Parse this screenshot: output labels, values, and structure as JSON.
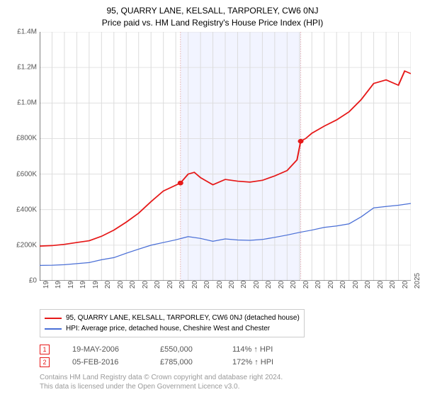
{
  "title": "95, QUARRY LANE, KELSALL, TARPORLEY, CW6 0NJ",
  "subtitle": "Price paid vs. HM Land Registry's House Price Index (HPI)",
  "chart": {
    "type": "line",
    "background_color": "#ffffff",
    "grid_color": "#dcdcdc",
    "shaded_region_fill": "#f2f4ff",
    "axis_color": "#000000",
    "label_fontsize": 10,
    "label_color": "#555555",
    "ylim": [
      0,
      1400000
    ],
    "ytick_step": 200000,
    "ytick_labels": [
      "£0",
      "£200K",
      "£400K",
      "£600K",
      "£800K",
      "£1.0M",
      "£1.2M",
      "£1.4M"
    ],
    "xlim": [
      1995,
      2025
    ],
    "xtick_step": 1,
    "xtick_labels": [
      "1995",
      "1996",
      "1997",
      "1998",
      "1999",
      "2000",
      "2001",
      "2002",
      "2003",
      "2004",
      "2005",
      "2006",
      "2007",
      "2008",
      "2009",
      "2010",
      "2011",
      "2012",
      "2013",
      "2014",
      "2015",
      "2016",
      "2017",
      "2018",
      "2019",
      "2020",
      "2021",
      "2022",
      "2023",
      "2024",
      "2025"
    ],
    "shaded_region": {
      "x_start": 2006.38,
      "x_end": 2016.1
    },
    "series": [
      {
        "name": "price_paid",
        "color": "#e61919",
        "line_width": 2,
        "x": [
          1995,
          1996,
          1997,
          1998,
          1999,
          2000,
          2001,
          2002,
          2003,
          2004,
          2005,
          2006.38,
          2007,
          2007.5,
          2008,
          2009,
          2010,
          2011,
          2012,
          2013,
          2014,
          2015,
          2015.8,
          2016.1,
          2016.5,
          2017,
          2018,
          2019,
          2020,
          2021,
          2022,
          2023,
          2024,
          2024.5,
          2025
        ],
        "y": [
          195000,
          198000,
          205000,
          215000,
          225000,
          250000,
          285000,
          330000,
          380000,
          445000,
          505000,
          550000,
          600000,
          610000,
          580000,
          540000,
          570000,
          560000,
          555000,
          565000,
          590000,
          620000,
          680000,
          785000,
          800000,
          830000,
          870000,
          905000,
          950000,
          1020000,
          1110000,
          1130000,
          1100000,
          1180000,
          1165000
        ]
      },
      {
        "name": "hpi",
        "color": "#4a6fd6",
        "line_width": 1.5,
        "x": [
          1995,
          1996,
          1997,
          1998,
          1999,
          2000,
          2001,
          2002,
          2003,
          2004,
          2005,
          2006,
          2007,
          2008,
          2009,
          2010,
          2011,
          2012,
          2013,
          2014,
          2015,
          2016,
          2017,
          2018,
          2019,
          2020,
          2021,
          2022,
          2023,
          2024,
          2025
        ],
        "y": [
          86000,
          87000,
          90000,
          96000,
          102000,
          118000,
          130000,
          155000,
          178000,
          200000,
          215000,
          230000,
          248000,
          238000,
          222000,
          235000,
          229000,
          227000,
          232000,
          244000,
          257000,
          272000,
          285000,
          300000,
          308000,
          320000,
          360000,
          410000,
          418000,
          425000,
          435000
        ]
      }
    ],
    "markers": [
      {
        "label": "1",
        "x": 2006.38,
        "y": 550000,
        "line_color": "#e6b3b3",
        "line_dash": "2,2",
        "dot_color": "#e61919"
      },
      {
        "label": "2",
        "x": 2016.1,
        "y": 785000,
        "line_color": "#e6b3b3",
        "line_dash": "2,2",
        "dot_color": "#e61919"
      }
    ]
  },
  "legend": {
    "items": [
      {
        "color": "#e61919",
        "label": "95, QUARRY LANE, KELSALL, TARPORLEY, CW6 0NJ (detached house)"
      },
      {
        "color": "#4a6fd6",
        "label": "HPI: Average price, detached house, Cheshire West and Chester"
      }
    ]
  },
  "transactions": [
    {
      "flag": "1",
      "date": "19-MAY-2006",
      "price": "£550,000",
      "hpi": "114% ↑ HPI"
    },
    {
      "flag": "2",
      "date": "05-FEB-2016",
      "price": "£785,000",
      "hpi": "172% ↑ HPI"
    }
  ],
  "footer": {
    "line1": "Contains HM Land Registry data © Crown copyright and database right 2024.",
    "line2": "This data is licensed under the Open Government Licence v3.0."
  }
}
